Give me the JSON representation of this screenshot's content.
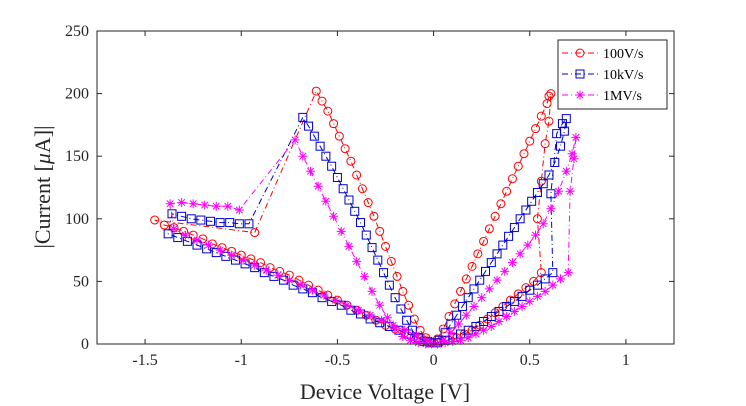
{
  "chart_data": {
    "type": "line",
    "title": "",
    "xlabel": "Device Voltage [V]",
    "ylabel": "|Current [",
    "ylabel_symbol": "μ",
    "ylabel_suffix": "A]|",
    "xlim": [
      -1.75,
      1.25
    ],
    "ylim": [
      0,
      250
    ],
    "xticks": [
      -1.5,
      -1,
      -0.5,
      0,
      0.5,
      1
    ],
    "xtick_labels": [
      "-1.5",
      "-1",
      "-0.5",
      "0",
      "0.5",
      "1"
    ],
    "yticks": [
      0,
      50,
      100,
      150,
      200,
      250
    ],
    "ytick_labels": [
      "0",
      "50",
      "100",
      "150",
      "200",
      "250"
    ],
    "legend_position": "top-right",
    "series": [
      {
        "name": "100V/s",
        "color": "#ff0000",
        "marker": "circle",
        "linestyle": "dash-dot",
        "x": [
          0.02,
          0.05,
          0.08,
          0.11,
          0.14,
          0.17,
          0.2,
          0.23,
          0.26,
          0.29,
          0.32,
          0.35,
          0.38,
          0.41,
          0.44,
          0.47,
          0.5,
          0.53,
          0.56,
          0.59,
          0.6,
          0.61,
          0.6,
          0.58,
          0.56,
          0.54,
          0.56,
          0.52,
          0.48,
          0.44,
          0.4,
          0.36,
          0.32,
          0.28,
          0.24,
          0.2,
          0.16,
          0.12,
          0.08,
          0.04,
          0.0,
          -0.05,
          -0.1,
          -0.15,
          -0.2,
          -0.25,
          -0.3,
          -0.35,
          -0.4,
          -0.45,
          -0.5,
          -0.55,
          -0.6,
          -0.65,
          -0.7,
          -0.75,
          -0.8,
          -0.85,
          -0.9,
          -0.95,
          -1.0,
          -1.05,
          -1.1,
          -1.15,
          -1.2,
          -1.25,
          -1.3,
          -1.35,
          -1.4,
          -1.45,
          -0.93,
          -0.61,
          -0.58,
          -0.55,
          -0.52,
          -0.49,
          -0.46,
          -0.43,
          -0.4,
          -0.37,
          -0.34,
          -0.31,
          -0.28,
          -0.25,
          -0.22,
          -0.19,
          -0.16,
          -0.13,
          -0.1,
          -0.07,
          -0.04,
          -0.01
        ],
        "y": [
          4,
          12,
          22,
          32,
          42,
          52,
          62,
          72,
          82,
          92,
          102,
          112,
          122,
          132,
          142,
          152,
          162,
          172,
          182,
          192,
          198,
          200,
          178,
          160,
          130,
          100,
          57,
          50,
          45,
          40,
          35,
          30,
          25,
          20,
          15,
          11,
          8,
          5,
          3,
          2,
          1,
          3,
          6,
          9,
          12,
          15,
          19,
          23,
          27,
          31,
          35,
          39,
          43,
          47,
          51,
          55,
          58,
          61,
          65,
          68,
          71,
          74,
          77,
          80,
          84,
          87,
          90,
          93,
          95,
          99,
          89,
          202,
          194,
          186,
          176,
          166,
          156,
          146,
          135,
          124,
          113,
          102,
          90,
          78,
          66,
          54,
          42,
          31,
          20,
          11,
          5,
          1
        ]
      },
      {
        "name": "10kV/s",
        "color": "#0000cc",
        "marker": "square",
        "linestyle": "dash-dot",
        "x": [
          0.03,
          0.06,
          0.09,
          0.12,
          0.15,
          0.18,
          0.21,
          0.24,
          0.27,
          0.3,
          0.33,
          0.36,
          0.39,
          0.42,
          0.45,
          0.48,
          0.51,
          0.54,
          0.57,
          0.6,
          0.63,
          0.66,
          0.68,
          0.69,
          0.67,
          0.64,
          0.61,
          0.62,
          0.58,
          0.54,
          0.5,
          0.46,
          0.42,
          0.38,
          0.34,
          0.3,
          0.26,
          0.22,
          0.18,
          0.14,
          0.1,
          0.06,
          0.02,
          -0.03,
          -0.08,
          -0.13,
          -0.18,
          -0.23,
          -0.28,
          -0.33,
          -0.38,
          -0.43,
          -0.48,
          -0.53,
          -0.58,
          -0.63,
          -0.68,
          -0.73,
          -0.78,
          -0.83,
          -0.88,
          -0.93,
          -0.98,
          -1.03,
          -1.08,
          -1.13,
          -1.18,
          -1.23,
          -1.28,
          -1.33,
          -1.38,
          -1.36,
          -1.31,
          -1.26,
          -1.21,
          -1.16,
          -1.11,
          -1.06,
          -1.01,
          -0.96,
          -0.68,
          -0.65,
          -0.62,
          -0.59,
          -0.56,
          -0.53,
          -0.5,
          -0.47,
          -0.44,
          -0.41,
          -0.38,
          -0.35,
          -0.32,
          -0.29,
          -0.26,
          -0.23,
          -0.2,
          -0.17,
          -0.14,
          -0.11,
          -0.08,
          -0.05,
          -0.02
        ],
        "y": [
          3,
          9,
          16,
          23,
          30,
          37,
          44,
          51,
          58,
          65,
          72,
          79,
          86,
          93,
          100,
          107,
          114,
          121,
          128,
          135,
          145,
          158,
          170,
          180,
          176,
          168,
          120,
          57,
          52,
          47,
          43,
          38,
          34,
          30,
          26,
          22,
          18,
          14,
          11,
          8,
          5,
          3,
          1,
          2,
          5,
          8,
          11,
          14,
          17,
          20,
          24,
          27,
          31,
          34,
          37,
          41,
          44,
          47,
          51,
          54,
          57,
          61,
          64,
          67,
          70,
          73,
          76,
          79,
          82,
          85,
          88,
          104,
          102,
          100,
          99,
          98,
          97,
          97,
          96,
          96,
          181,
          174,
          166,
          158,
          150,
          142,
          133,
          124,
          115,
          106,
          97,
          87,
          77,
          67,
          57,
          47,
          37,
          28,
          19,
          11,
          5,
          2,
          1
        ]
      },
      {
        "name": "1MV/s",
        "color": "#ff00ff",
        "marker": "star",
        "linestyle": "dash-dot",
        "x": [
          0.05,
          0.09,
          0.13,
          0.17,
          0.21,
          0.25,
          0.29,
          0.33,
          0.37,
          0.41,
          0.45,
          0.49,
          0.53,
          0.57,
          0.61,
          0.65,
          0.69,
          0.72,
          0.74,
          0.73,
          0.71,
          0.7,
          0.66,
          0.62,
          0.58,
          0.54,
          0.5,
          0.46,
          0.42,
          0.38,
          0.34,
          0.3,
          0.26,
          0.22,
          0.18,
          0.14,
          0.1,
          0.06,
          0.02,
          -0.03,
          -0.09,
          -0.15,
          -0.21,
          -0.27,
          -0.33,
          -0.39,
          -0.45,
          -0.51,
          -0.57,
          -0.63,
          -0.69,
          -0.75,
          -0.81,
          -0.87,
          -0.93,
          -0.99,
          -1.05,
          -1.11,
          -1.17,
          -1.23,
          -1.29,
          -1.35,
          -1.37,
          -1.31,
          -1.25,
          -1.19,
          -1.13,
          -1.07,
          -1.01,
          -0.72,
          -0.68,
          -0.64,
          -0.6,
          -0.56,
          -0.52,
          -0.48,
          -0.44,
          -0.4,
          -0.36,
          -0.32,
          -0.28,
          -0.24,
          -0.2,
          -0.16,
          -0.12,
          -0.08,
          -0.04,
          -0.01
        ],
        "y": [
          3,
          9,
          16,
          23,
          30,
          37,
          44,
          51,
          58,
          65,
          72,
          79,
          87,
          96,
          108,
          122,
          138,
          152,
          165,
          148,
          122,
          57,
          52,
          47,
          42,
          38,
          34,
          30,
          26,
          22,
          18,
          14,
          11,
          8,
          5,
          3,
          2,
          1,
          0,
          3,
          7,
          11,
          15,
          19,
          23,
          27,
          31,
          35,
          39,
          43,
          47,
          51,
          55,
          59,
          63,
          67,
          71,
          75,
          79,
          83,
          87,
          92,
          112,
          113,
          112,
          111,
          110,
          110,
          107,
          163,
          150,
          138,
          126,
          114,
          102,
          90,
          78,
          66,
          54,
          42,
          31,
          21,
          12,
          6,
          3,
          1,
          0,
          0
        ]
      }
    ]
  }
}
